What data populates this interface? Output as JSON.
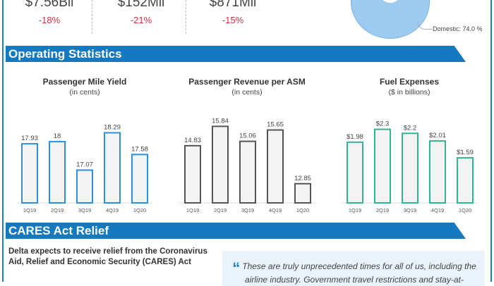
{
  "kpis": [
    {
      "value": "$7.56Bil",
      "change": "-18%"
    },
    {
      "value": "$152Mil",
      "change": "-21%"
    },
    {
      "value": "$871Mil",
      "change": "-15%"
    }
  ],
  "donut": {
    "label": "Domestic: 74.0 %",
    "color": "#9ccbf1"
  },
  "sections": {
    "operating": "Operating Statistics",
    "cares": "CARES Act Relief"
  },
  "chart_data": [
    {
      "type": "bar",
      "title": "Passenger Mile Yield",
      "subtitle": "(in cents)",
      "categories": [
        "1Q19",
        "2Q19",
        "3Q19",
        "4Q19",
        "1Q20"
      ],
      "values": [
        17.93,
        18,
        17.07,
        18.29,
        17.58
      ],
      "labels": [
        "17.93",
        "18",
        "17.07",
        "18.29",
        "17.58"
      ],
      "ylim": [
        16.0,
        18.6
      ],
      "color": "#2e8fdf"
    },
    {
      "type": "bar",
      "title": "Passenger Revenue per ASM",
      "subtitle": "(in cents)",
      "categories": [
        "1Q19",
        "2Q19",
        "3Q19",
        "4Q19",
        "1Q20"
      ],
      "values": [
        14.83,
        15.84,
        15.06,
        15.65,
        12.85
      ],
      "labels": [
        "14.83",
        "15.84",
        "15.06",
        "15.65",
        "12.85"
      ],
      "ylim": [
        11.85,
        16.0
      ],
      "color": "#555555"
    },
    {
      "type": "bar",
      "title": "Fuel Expenses",
      "subtitle": "($ in billions)",
      "categories": [
        "1Q19",
        "2Q19",
        "3Q19",
        "4Q19",
        "1Q20"
      ],
      "values": [
        1.98,
        2.3,
        2.2,
        2.01,
        1.59
      ],
      "labels": [
        "$1.98",
        "$2.3",
        "$2.2",
        "$2.01",
        "$1.59"
      ],
      "ylim": [
        0.47,
        2.45
      ],
      "color": "#2fb58f"
    }
  ],
  "cares": {
    "lead": "Delta expects to receive relief from the Coronavirus Aid, Relief and Economic Security (CARES) Act",
    "quote": "These are truly unprecedented times for all of us, including the airline industry. Government travel restrictions and stay-at-"
  }
}
